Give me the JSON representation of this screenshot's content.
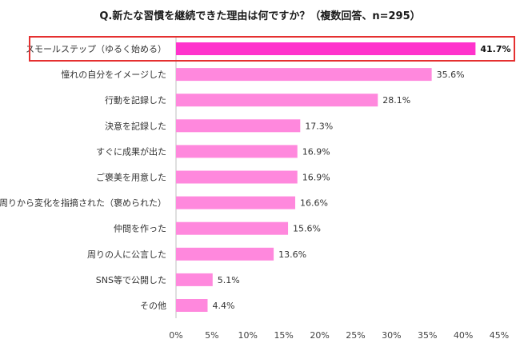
{
  "chart_data": {
    "type": "bar",
    "orientation": "horizontal",
    "title": "Q.新たな習慣を継続できた理由は何ですか？（複数回答、n=295）",
    "categories": [
      "スモールステップ（ゆるく始める）",
      "憧れの自分をイメージした",
      "行動を記録した",
      "決意を記録した",
      "すぐに成果が出た",
      "ご褒美を用意した",
      "周りから変化を指摘された（褒められた）",
      "仲間を作った",
      "周りの人に公言した",
      "SNS等で公開した",
      "その他"
    ],
    "values": [
      41.7,
      35.6,
      28.1,
      17.3,
      16.9,
      16.9,
      16.6,
      15.6,
      13.6,
      5.1,
      4.4
    ],
    "value_labels": [
      "41.7%",
      "35.6%",
      "28.1%",
      "17.3%",
      "16.9%",
      "16.9%",
      "16.6%",
      "15.6%",
      "13.6%",
      "5.1%",
      "4.4%"
    ],
    "xlim": [
      0,
      45
    ],
    "x_ticks": [
      0,
      5,
      10,
      15,
      20,
      25,
      30,
      35,
      40,
      45
    ],
    "x_tick_labels": [
      "0%",
      "5%",
      "10%",
      "15%",
      "20%",
      "25%",
      "30%",
      "35%",
      "40%",
      "45%"
    ],
    "grid": false,
    "highlight_index": 0,
    "colors": {
      "highlight_bar": "#ff33cc",
      "bar": "#ff88dd",
      "highlight_frame": "#e53030"
    }
  }
}
